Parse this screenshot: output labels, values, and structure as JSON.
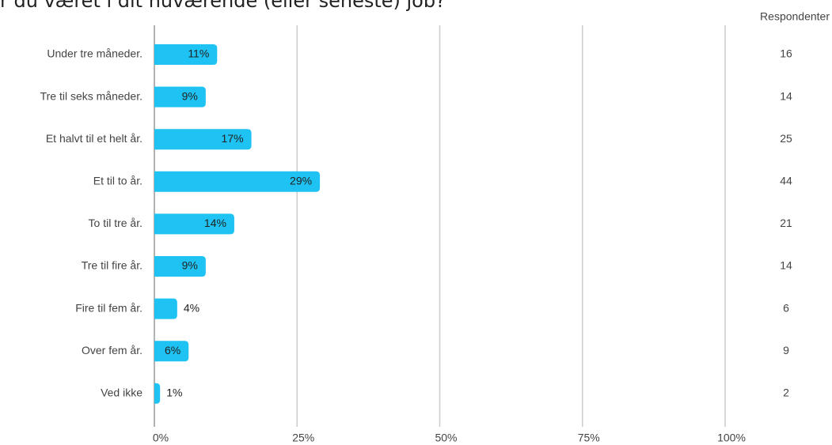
{
  "chart_data": {
    "type": "bar",
    "orientation": "horizontal",
    "title": "r du været i dit nuværende (eller seneste) job?",
    "categories": [
      "Under tre måneder.",
      "Tre til seks måneder.",
      "Et halvt til et helt år.",
      "Et til to år.",
      "To til tre år.",
      "Tre til fire år.",
      "Fire til fem år.",
      "Over fem år.",
      "Ved ikke"
    ],
    "values": [
      11,
      9,
      17,
      29,
      14,
      9,
      4,
      6,
      1
    ],
    "value_labels": [
      "11%",
      "9%",
      "17%",
      "29%",
      "14%",
      "9%",
      "4%",
      "6%",
      "1%"
    ],
    "color": "#1ec3f3",
    "respondents_header": "Respondenter",
    "respondents": [
      16,
      14,
      25,
      44,
      21,
      14,
      6,
      9,
      2
    ],
    "xlim": [
      0,
      100
    ],
    "xticks": [
      {
        "value": 0,
        "label": "0%"
      },
      {
        "value": 25,
        "label": "25%"
      },
      {
        "value": 50,
        "label": "50%"
      },
      {
        "value": 75,
        "label": "75%"
      },
      {
        "value": 100,
        "label": "100%"
      }
    ],
    "grid": true
  }
}
